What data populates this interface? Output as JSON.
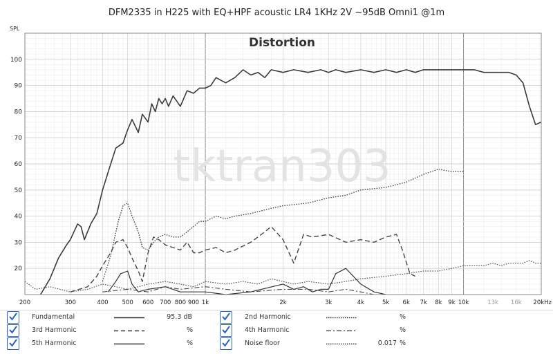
{
  "chart_data": {
    "type": "line",
    "title": "DFM2335 in H225 with EQ+HPF acoustic LR4 1KHz 2V ~95dB Omni1 @1m",
    "subtitle": "Distortion",
    "watermark": "tktran303",
    "ylabel": "SPL",
    "xscale": "log",
    "xlim": [
      200,
      20000
    ],
    "ylim": [
      10,
      110
    ],
    "grid": true,
    "y_ticks": [
      20,
      30,
      40,
      50,
      60,
      70,
      80,
      90,
      100
    ],
    "x_ticks": [
      {
        "v": 200,
        "label": "200"
      },
      {
        "v": 300,
        "label": "300"
      },
      {
        "v": 400,
        "label": "400"
      },
      {
        "v": 500,
        "label": "500"
      },
      {
        "v": 600,
        "label": "600"
      },
      {
        "v": 700,
        "label": "700"
      },
      {
        "v": 800,
        "label": "800"
      },
      {
        "v": 900,
        "label": "900"
      },
      {
        "v": 1000,
        "label": "1k"
      },
      {
        "v": 2000,
        "label": "2k"
      },
      {
        "v": 3000,
        "label": "3k"
      },
      {
        "v": 4000,
        "label": "4k"
      },
      {
        "v": 5000,
        "label": "5k"
      },
      {
        "v": 6000,
        "label": "6k"
      },
      {
        "v": 7000,
        "label": "7k"
      },
      {
        "v": 8000,
        "label": "8k"
      },
      {
        "v": 9000,
        "label": "9k"
      },
      {
        "v": 10000,
        "label": "10k"
      },
      {
        "v": 13000,
        "label": "13k"
      },
      {
        "v": 16000,
        "label": "16k"
      },
      {
        "v": 20000,
        "label": "20kHz"
      }
    ],
    "series": [
      {
        "name": "Fundamental",
        "style": "solid",
        "width": 1.6,
        "color": "#3a3a3a",
        "x": [
          230,
          250,
          270,
          290,
          300,
          320,
          330,
          340,
          360,
          380,
          400,
          430,
          450,
          480,
          500,
          520,
          550,
          570,
          600,
          620,
          640,
          660,
          680,
          700,
          720,
          750,
          800,
          850,
          900,
          950,
          1000,
          1050,
          1100,
          1200,
          1300,
          1400,
          1500,
          1600,
          1700,
          1800,
          2000,
          2200,
          2500,
          2800,
          3000,
          3200,
          3500,
          4000,
          4500,
          5000,
          5500,
          6000,
          6500,
          7000,
          8000,
          9000,
          10000,
          11000,
          12000,
          13000,
          14000,
          15000,
          16000,
          17000,
          18000,
          19000,
          20000
        ],
        "y": [
          10,
          16,
          24,
          29,
          31,
          37,
          36,
          31,
          37,
          41,
          50,
          60,
          66,
          68,
          73,
          77,
          72,
          79,
          76,
          83,
          80,
          85,
          83,
          85,
          82,
          86,
          82,
          88,
          87,
          89,
          89,
          90,
          93,
          91,
          93,
          96,
          94,
          95,
          93,
          96,
          95,
          96,
          95,
          96,
          95,
          96,
          95,
          96,
          95,
          96,
          95,
          96,
          95,
          96,
          96,
          96,
          96,
          96,
          95,
          95,
          95,
          95,
          94,
          91,
          82,
          75,
          76
        ]
      },
      {
        "name": "2nd Harmonic",
        "style": "dotted",
        "width": 1.3,
        "color": "#444",
        "x": [
          400,
          430,
          460,
          480,
          500,
          520,
          550,
          570,
          600,
          630,
          660,
          700,
          750,
          800,
          850,
          900,
          950,
          1000,
          1100,
          1200,
          1300,
          1500,
          1800,
          2000,
          2500,
          3000,
          3500,
          4000,
          5000,
          6000,
          7000,
          8000,
          9000,
          10000
        ],
        "y": [
          15,
          25,
          38,
          44,
          45,
          40,
          34,
          28,
          27,
          30,
          32,
          33,
          32,
          32,
          34,
          36,
          38,
          38,
          40,
          39,
          40,
          41,
          43,
          44,
          45,
          47,
          48,
          50,
          51,
          53,
          56,
          58,
          57,
          57
        ]
      },
      {
        "name": "3rd Harmonic",
        "style": "dashed",
        "width": 1.4,
        "color": "#444",
        "x": [
          300,
          350,
          380,
          400,
          430,
          450,
          480,
          500,
          520,
          550,
          570,
          600,
          630,
          660,
          700,
          750,
          800,
          850,
          900,
          950,
          1000,
          1100,
          1200,
          1300,
          1500,
          1700,
          1800,
          2000,
          2200,
          2400,
          2600,
          3000,
          3500,
          4000,
          4500,
          5000,
          5500,
          5800,
          6200,
          6500
        ],
        "y": [
          11,
          13,
          17,
          21,
          26,
          30,
          31,
          28,
          24,
          19,
          15,
          26,
          32,
          31,
          29,
          28,
          27,
          30,
          26,
          26,
          27,
          28,
          26,
          27,
          30,
          34,
          36,
          31,
          22,
          33,
          32,
          33,
          30,
          31,
          30,
          32,
          33,
          27,
          18,
          17
        ]
      },
      {
        "name": "5th Harmonic",
        "style": "solid",
        "width": 1.2,
        "color": "#333",
        "x": [
          420,
          450,
          470,
          500,
          520,
          550,
          600,
          700,
          800,
          1000,
          1200,
          1500,
          2000,
          2200,
          2400,
          2600,
          2800,
          3000,
          3200,
          3500,
          4000,
          4500,
          5000
        ],
        "y": [
          11,
          15,
          18,
          19,
          14,
          11,
          12,
          13,
          11,
          11,
          10,
          11,
          14,
          12,
          13,
          11,
          12,
          12,
          18,
          20,
          14,
          11,
          10
        ]
      },
      {
        "name": "4th Harmonic",
        "style": "dashdot",
        "width": 1.1,
        "color": "#444",
        "x": [
          400,
          500,
          600,
          700,
          800,
          1000,
          1200,
          1500,
          2000,
          2500,
          3000,
          3500,
          4000,
          4500
        ],
        "y": [
          11,
          12,
          11,
          13,
          12,
          13,
          12,
          11,
          12,
          12,
          11,
          12,
          11,
          10
        ]
      },
      {
        "name": "Noise floor",
        "style": "dotted",
        "width": 1.2,
        "color": "#555",
        "x": [
          200,
          220,
          250,
          300,
          350,
          400,
          450,
          500,
          550,
          600,
          700,
          800,
          900,
          1000,
          1200,
          1400,
          1600,
          1800,
          2000,
          2200,
          2500,
          3000,
          3500,
          4000,
          5000,
          6000,
          7000,
          8000,
          9000,
          10000,
          11000,
          12000,
          13000,
          14000,
          15000,
          16000,
          17000,
          18000,
          19000,
          20000
        ],
        "y": [
          15,
          12,
          13,
          11,
          12,
          14,
          13,
          12,
          13,
          14,
          15,
          14,
          13,
          15,
          14,
          15,
          14,
          16,
          15,
          14,
          15,
          14,
          15,
          16,
          17,
          18,
          19,
          19,
          20,
          21,
          21,
          21,
          22,
          21,
          22,
          22,
          22,
          23,
          22,
          22
        ]
      }
    ]
  },
  "legend": [
    {
      "name": "Fundamental",
      "value": "95.3 dB",
      "unit": ""
    },
    {
      "name": "2nd Harmonic",
      "value": "",
      "unit": "%"
    },
    {
      "name": "3rd Harmonic",
      "value": "",
      "unit": "%"
    },
    {
      "name": "4th Harmonic",
      "value": "",
      "unit": "%"
    },
    {
      "name": "5th Harmonic",
      "value": "",
      "unit": "%"
    },
    {
      "name": "Noise floor",
      "value": "0.017",
      "unit": "%"
    }
  ]
}
